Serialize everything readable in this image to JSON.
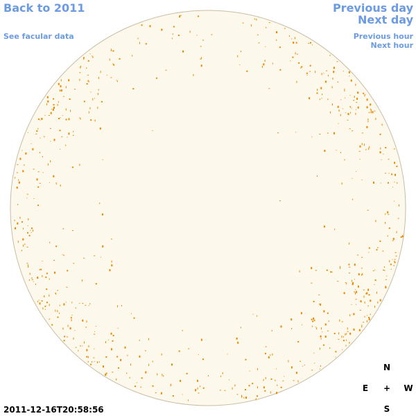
{
  "links": {
    "back": "Back to 2011",
    "facular": "See facular data",
    "previous_day": "Previous day",
    "next_day": "Next day",
    "previous_hour": "Previous hour",
    "next_hour": "Next hour"
  },
  "timestamp": "2011-12-16T20:58:56",
  "compass": {
    "north": "N",
    "east": "E",
    "center": "+",
    "west": "W",
    "south": "S"
  }
}
